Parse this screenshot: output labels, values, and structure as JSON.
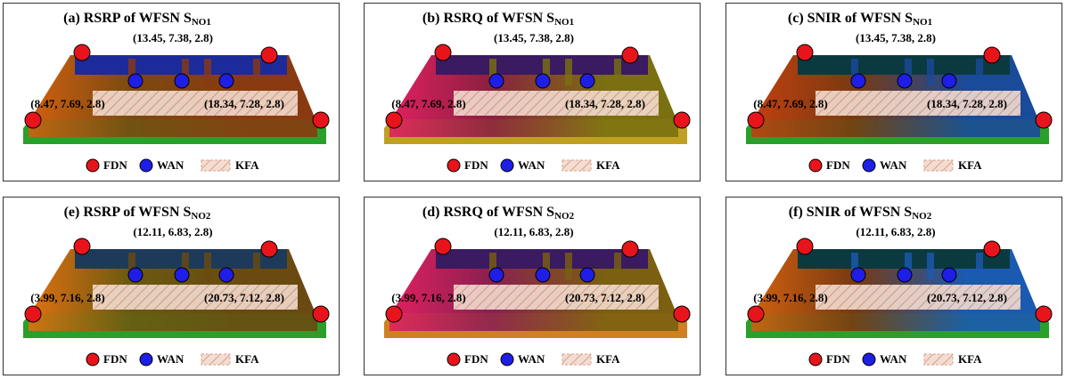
{
  "panels": [
    {
      "title": "(a) RSRP of WFSN S",
      "subscript": "NO1",
      "top_label": "(13.45, 7.38, 2.8)",
      "left_label": "(8.47, 7.69, 2.8)",
      "right_label": "(18.34, 7.28, 2.8)",
      "colors": [
        "#7a4a10",
        "#8a3a10",
        "#1d2a9a",
        "#d06010",
        "#2aa02a"
      ]
    },
    {
      "title": "(b) RSRQ of WFSN S",
      "subscript": "NO1",
      "top_label": "(13.45, 7.38, 2.8)",
      "left_label": "(8.47, 7.69, 2.8)",
      "right_label": "(18.34, 7.28, 2.8)",
      "colors": [
        "#8a2040",
        "#7a7010",
        "#3a1a60",
        "#e02060",
        "#c0a020"
      ]
    },
    {
      "title": "(c) SNIR of WFSN S",
      "subscript": "NO1",
      "top_label": "(13.45, 7.38, 2.8)",
      "left_label": "(8.47, 7.69, 2.8)",
      "right_label": "(18.34, 7.28, 2.8)",
      "colors": [
        "#7a3a10",
        "#1a4a9a",
        "#0a3a40",
        "#c04010",
        "#2aa02a"
      ]
    },
    {
      "title": "(e) RSRP of WFSN S",
      "subscript": "NO2",
      "top_label": "(12.11, 6.83, 2.8)",
      "left_label": "(3.99, 7.16, 2.8)",
      "right_label": "(20.73, 7.12, 2.8)",
      "colors": [
        "#6a5a10",
        "#6a4a10",
        "#1d3a5a",
        "#e07010",
        "#2aa02a"
      ]
    },
    {
      "title": "(d) RSRQ of WFSN S",
      "subscript": "NO2",
      "top_label": "(12.11, 6.83, 2.8)",
      "left_label": "(3.99, 7.16, 2.8)",
      "right_label": "(20.73, 7.12, 2.8)",
      "colors": [
        "#8a2050",
        "#7a6010",
        "#3a1a60",
        "#e02060",
        "#d08020"
      ]
    },
    {
      "title": "(f) SNIR of WFSN S",
      "subscript": "NO2",
      "top_label": "(12.11, 6.83, 2.8)",
      "left_label": "(3.99, 7.16, 2.8)",
      "right_label": "(20.73, 7.12, 2.8)",
      "colors": [
        "#7a3a10",
        "#1a5ab0",
        "#0a3a40",
        "#d06010",
        "#2aa02a"
      ]
    }
  ],
  "legend": {
    "fdn": "FDN",
    "wan": "WAN",
    "kfa": "KFA"
  }
}
